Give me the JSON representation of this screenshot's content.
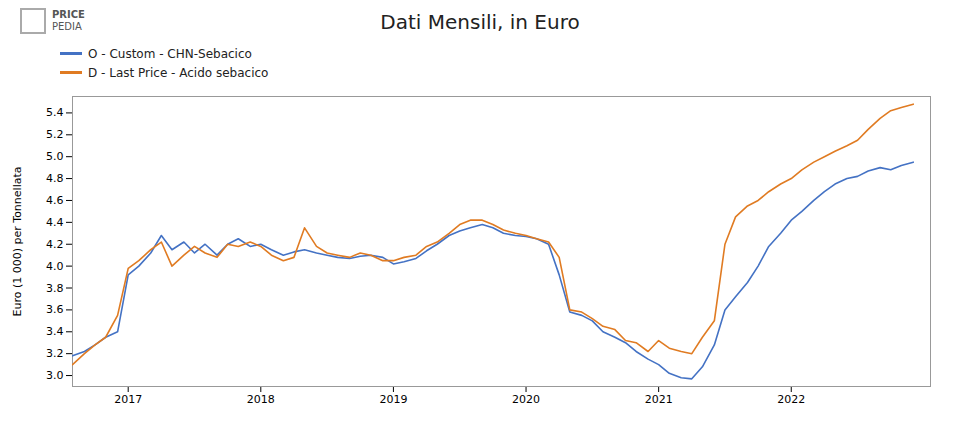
{
  "chart_data": {
    "type": "line",
    "title": "Dati Mensili, in Euro",
    "y_label": "Euro (1 000) per Tonnellata",
    "annotations": [
      "PRICE",
      "PEDIA"
    ],
    "legend": "upper left",
    "grid": false,
    "xlim": [
      2016.58,
      2023.05
    ],
    "xticks": [
      2017,
      2018,
      2019,
      2020,
      2021,
      2022
    ],
    "ylim": [
      2.9,
      5.55
    ],
    "yticks": [
      {
        "value": 3.0,
        "label": "3.0"
      },
      3.2,
      3.4,
      3.6,
      3.8,
      {
        "value": 4.0,
        "label": "4.0"
      },
      4.2,
      4.4,
      4.6,
      4.8,
      {
        "value": 5.0,
        "label": "5.0"
      },
      5.2,
      5.4
    ],
    "x": [
      2016.58,
      2016.67,
      2016.75,
      2016.83,
      2016.92,
      2017.0,
      2017.08,
      2017.17,
      2017.25,
      2017.33,
      2017.42,
      2017.5,
      2017.58,
      2017.67,
      2017.75,
      2017.83,
      2017.92,
      2018.0,
      2018.08,
      2018.17,
      2018.25,
      2018.33,
      2018.42,
      2018.5,
      2018.58,
      2018.67,
      2018.75,
      2018.83,
      2018.92,
      2019.0,
      2019.08,
      2019.17,
      2019.25,
      2019.33,
      2019.42,
      2019.5,
      2019.58,
      2019.67,
      2019.75,
      2019.83,
      2019.92,
      2020.0,
      2020.08,
      2020.17,
      2020.25,
      2020.33,
      2020.42,
      2020.5,
      2020.58,
      2020.67,
      2020.75,
      2020.83,
      2020.92,
      2021.0,
      2021.08,
      2021.17,
      2021.25,
      2021.33,
      2021.42,
      2021.5,
      2021.58,
      2021.67,
      2021.75,
      2021.83,
      2021.92,
      2022.0,
      2022.08,
      2022.17,
      2022.25,
      2022.33,
      2022.42,
      2022.5,
      2022.58,
      2022.67,
      2022.75,
      2022.83,
      2022.92
    ],
    "series": [
      {
        "name": "O - Custom - CHN-Sebacico",
        "color": "#4472c4",
        "values": [
          3.18,
          3.22,
          3.28,
          3.35,
          3.4,
          3.92,
          4.0,
          4.12,
          4.28,
          4.15,
          4.22,
          4.12,
          4.2,
          4.1,
          4.2,
          4.25,
          4.18,
          4.2,
          4.15,
          4.1,
          4.13,
          4.15,
          4.12,
          4.1,
          4.08,
          4.07,
          4.09,
          4.1,
          4.08,
          4.02,
          4.04,
          4.07,
          4.14,
          4.2,
          4.28,
          4.32,
          4.35,
          4.38,
          4.35,
          4.3,
          4.28,
          4.27,
          4.25,
          4.2,
          3.92,
          3.58,
          3.55,
          3.5,
          3.4,
          3.35,
          3.3,
          3.22,
          3.15,
          3.1,
          3.02,
          2.98,
          2.97,
          3.08,
          3.28,
          3.6,
          3.72,
          3.85,
          4.0,
          4.18,
          4.3,
          4.42,
          4.5,
          4.6,
          4.68,
          4.75,
          4.8,
          4.82,
          4.87,
          4.9,
          4.88,
          4.92,
          4.95
        ]
      },
      {
        "name": "D - Last Price - Acido sebacico",
        "color": "#e07b22",
        "values": [
          3.1,
          3.2,
          3.28,
          3.35,
          3.55,
          3.98,
          4.05,
          4.15,
          4.22,
          4.0,
          4.1,
          4.18,
          4.12,
          4.08,
          4.2,
          4.18,
          4.22,
          4.18,
          4.1,
          4.05,
          4.08,
          4.35,
          4.18,
          4.12,
          4.1,
          4.08,
          4.12,
          4.1,
          4.05,
          4.05,
          4.08,
          4.1,
          4.18,
          4.22,
          4.3,
          4.38,
          4.42,
          4.42,
          4.38,
          4.33,
          4.3,
          4.28,
          4.25,
          4.22,
          4.08,
          3.6,
          3.58,
          3.52,
          3.45,
          3.42,
          3.32,
          3.3,
          3.22,
          3.32,
          3.25,
          3.22,
          3.2,
          3.35,
          3.5,
          4.2,
          4.45,
          4.55,
          4.6,
          4.68,
          4.75,
          4.8,
          4.88,
          4.95,
          5.0,
          5.05,
          5.1,
          5.15,
          5.25,
          5.35,
          5.42,
          5.45,
          5.48
        ]
      }
    ]
  }
}
